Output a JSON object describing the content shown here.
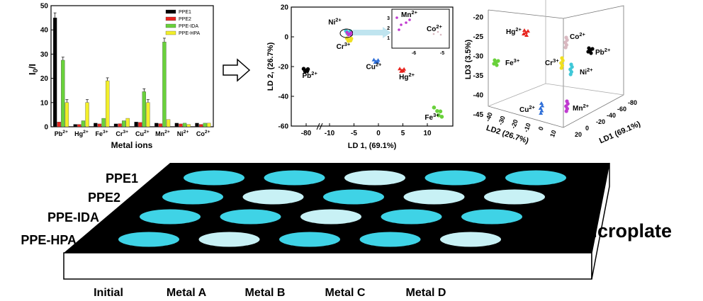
{
  "chart_data": [
    {
      "type": "bar",
      "ylabel": "I0/I",
      "xlabel": "Metal ions",
      "ylim": [
        0,
        50
      ],
      "yticks": [
        "0",
        "10",
        "20",
        "30",
        "40",
        "50"
      ],
      "categories": [
        "Pb2+",
        "Hg2+",
        "Fe3+",
        "Cr3+",
        "Cu2+",
        "Mn2+",
        "Ni2+",
        "Co2+"
      ],
      "legend_position": "top-right",
      "series": [
        {
          "name": "PPE1",
          "color": "#000000",
          "values": [
            45.0,
            1.0,
            1.5,
            1.2,
            2.0,
            1.5,
            1.5,
            1.5
          ]
        },
        {
          "name": "PPE2",
          "color": "#e8251f",
          "values": [
            2.0,
            1.0,
            1.2,
            1.3,
            1.8,
            1.3,
            1.2,
            1.0
          ]
        },
        {
          "name": "PPE-IDA",
          "color": "#69d13b",
          "values": [
            27.5,
            2.5,
            3.5,
            2.5,
            14.5,
            35.0,
            1.5,
            1.5
          ]
        },
        {
          "name": "PPE-HPA",
          "color": "#f2ef2a",
          "values": [
            10.0,
            10.0,
            19.0,
            3.5,
            10.0,
            3.0,
            1.0,
            1.5
          ]
        }
      ]
    },
    {
      "type": "scatter",
      "xlabel": "LD 1, (69.1%)",
      "ylabel": "LD 2, (26.7%)",
      "xticks": [
        "-80",
        "-10",
        "-5",
        "0",
        "5",
        "10"
      ],
      "yticks": [
        "20",
        "0",
        "-20",
        "-40",
        "-60"
      ],
      "ylim": [
        -60,
        20
      ],
      "clusters": [
        {
          "name": "Pb2+",
          "label": "Pb",
          "charge": "2+",
          "color": "#000000",
          "x": -81,
          "y": -22
        },
        {
          "name": "Ni2+",
          "label": "Ni",
          "charge": "2+",
          "color": "#40c8d8",
          "x": -6.2,
          "y": 3.5
        },
        {
          "name": "Mn2+",
          "label": "",
          "charge": "",
          "color": "#c03ad0",
          "x": -6,
          "y": 2.5
        },
        {
          "name": "Cr3+",
          "label": "Cr",
          "charge": "3+",
          "color": "#f0e020",
          "x": -6,
          "y": -1.5
        },
        {
          "name": "Cu2+",
          "label": "Cu",
          "charge": "2+",
          "color": "#2f6fd8",
          "x": -0.5,
          "y": -16
        },
        {
          "name": "Hg2+",
          "label": "Hg",
          "charge": "2+",
          "color": "#e8251f",
          "x": 4.8,
          "y": -22
        },
        {
          "name": "Fe3+",
          "label": "Fe",
          "charge": "3+",
          "color": "#69d13b",
          "x": 11.8,
          "y": -48
        }
      ],
      "inset": {
        "xticks": [
          "-6",
          "-5"
        ],
        "yticks": [
          "3",
          "2",
          "1"
        ],
        "labels": [
          {
            "label": "Mn",
            "charge": "2+"
          },
          {
            "label": "Co",
            "charge": "2+"
          }
        ]
      }
    },
    {
      "type": "scatter",
      "xlabel": "LD1 (69.1%)",
      "ylabel": "LD2 (26.7%)",
      "zlabel": "LD3 (3.5%)",
      "zticks": [
        "-20",
        "-25",
        "-30",
        "-35",
        "-40",
        "-45"
      ],
      "xticks": [
        "-80",
        "-60",
        "-40",
        "-20",
        "0",
        "20"
      ],
      "yticks": [
        "-40",
        "-30",
        "-20",
        "-10",
        "0",
        "10"
      ],
      "clusters": [
        {
          "name": "Hg2+",
          "label": "Hg",
          "charge": "2+",
          "color": "#e8251f"
        },
        {
          "name": "Co2+",
          "label": "Co",
          "charge": "2+",
          "color": "#d9b8c0"
        },
        {
          "name": "Pb2+",
          "label": "Pb",
          "charge": "2+",
          "color": "#000000"
        },
        {
          "name": "Fe3+",
          "label": "Fe",
          "charge": "3+",
          "color": "#69d13b"
        },
        {
          "name": "Cr3+",
          "label": "Cr",
          "charge": "3+",
          "color": "#f0e020"
        },
        {
          "name": "Ni2+",
          "label": "Ni",
          "charge": "2+",
          "color": "#40c8d8"
        },
        {
          "name": "Cu2+",
          "label": "Cu",
          "charge": "2+",
          "color": "#2f6fd8"
        },
        {
          "name": "Mn2+",
          "label": "Mn",
          "charge": "2+",
          "color": "#c03ad0"
        }
      ]
    }
  ],
  "microplate": {
    "title": "Microplate",
    "rows": [
      "PPE1",
      "PPE2",
      "PPE-IDA",
      "PPE-HPA"
    ],
    "columns": [
      "Initial",
      "Metal A",
      "Metal B",
      "Metal C",
      "Metal D"
    ],
    "well_colors": {
      "bright": "#3fd3e6",
      "light": "#c8f1f5"
    },
    "wells": [
      [
        "bright",
        "bright",
        "light",
        "bright",
        "bright"
      ],
      [
        "bright",
        "light",
        "bright",
        "light",
        "light"
      ],
      [
        "bright",
        "bright",
        "light",
        "bright",
        "bright"
      ],
      [
        "bright",
        "light",
        "bright",
        "bright",
        "light"
      ]
    ]
  }
}
